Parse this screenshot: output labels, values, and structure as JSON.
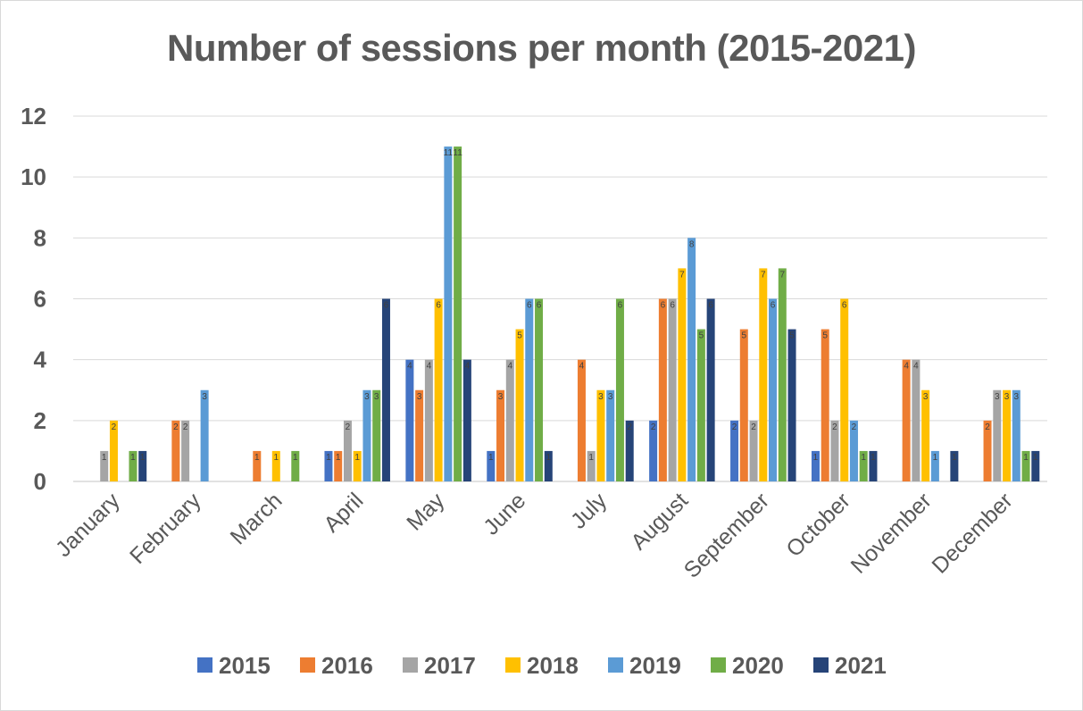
{
  "chart_data": {
    "type": "bar",
    "title": "Number of sessions per month (2015-2021)",
    "xlabel": "",
    "ylabel": "",
    "ylim": [
      0,
      12
    ],
    "yticks": [
      0,
      2,
      4,
      6,
      8,
      10,
      12
    ],
    "grid": true,
    "legend_position": "bottom",
    "categories": [
      "January",
      "February",
      "March",
      "April",
      "May",
      "June",
      "July",
      "August",
      "September",
      "October",
      "November",
      "December"
    ],
    "series": [
      {
        "name": "2015",
        "color": "#4472c4",
        "values": [
          0,
          0,
          0,
          1,
          4,
          1,
          0,
          2,
          2,
          1,
          0,
          0
        ]
      },
      {
        "name": "2016",
        "color": "#ed7d31",
        "values": [
          0,
          2,
          1,
          1,
          3,
          3,
          4,
          6,
          5,
          5,
          4,
          2
        ]
      },
      {
        "name": "2017",
        "color": "#a5a5a5",
        "values": [
          1,
          2,
          0,
          2,
          4,
          4,
          1,
          6,
          2,
          2,
          4,
          3
        ]
      },
      {
        "name": "2018",
        "color": "#ffc000",
        "values": [
          2,
          0,
          1,
          1,
          6,
          5,
          3,
          7,
          7,
          6,
          3,
          3
        ]
      },
      {
        "name": "2019",
        "color": "#5b9bd5",
        "values": [
          0,
          3,
          0,
          3,
          11,
          6,
          3,
          8,
          6,
          2,
          1,
          3
        ]
      },
      {
        "name": "2020",
        "color": "#70ad47",
        "values": [
          1,
          0,
          1,
          3,
          11,
          6,
          6,
          5,
          7,
          1,
          0,
          1
        ]
      },
      {
        "name": "2021",
        "color": "#264478",
        "values": [
          1,
          0,
          0,
          6,
          4,
          1,
          2,
          6,
          5,
          1,
          1,
          1
        ]
      }
    ]
  }
}
